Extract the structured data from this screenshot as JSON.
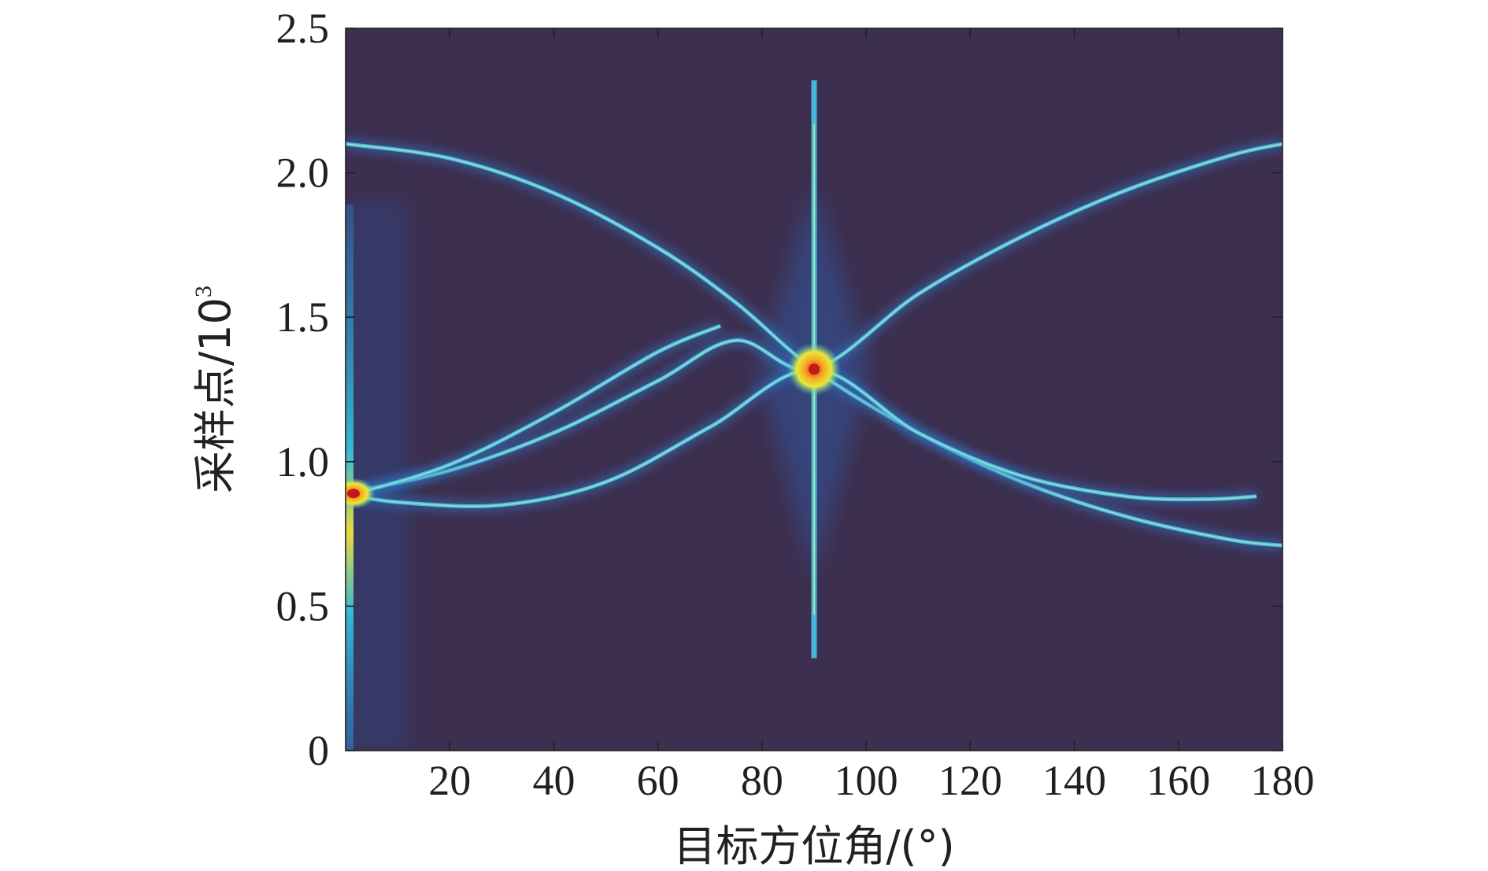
{
  "chart_data": {
    "type": "heatmap",
    "title": "",
    "xlabel": "目标方位角/(°)",
    "ylabel": "采样点/10",
    "ylabel_superscript": "3",
    "xlim": [
      0,
      180
    ],
    "ylim": [
      0,
      2.5
    ],
    "x_ticks": [
      20,
      40,
      60,
      80,
      100,
      120,
      140,
      160,
      180
    ],
    "y_ticks": [
      0,
      0.5,
      1.0,
      1.5,
      2.0,
      2.5
    ],
    "y_tick_labels": [
      "0",
      "0.5",
      "1.0",
      "1.5",
      "2.0",
      "2.5"
    ],
    "background_color": "#3d2f4f",
    "colormap": "jet",
    "features": [
      {
        "name": "vertical-line",
        "x": 90,
        "y_range": [
          0.32,
          2.32
        ]
      },
      {
        "name": "peak",
        "x": 90,
        "y": 1.32
      },
      {
        "name": "left-edge-peak",
        "x": 1.5,
        "y": 0.89
      },
      {
        "name": "curve-descending",
        "points": [
          [
            0,
            2.1
          ],
          [
            20,
            2.05
          ],
          [
            40,
            1.93
          ],
          [
            60,
            1.74
          ],
          [
            75,
            1.55
          ],
          [
            90,
            1.32
          ],
          [
            110,
            1.1
          ],
          [
            130,
            0.93
          ],
          [
            150,
            0.81
          ],
          [
            170,
            0.73
          ],
          [
            180,
            0.71
          ]
        ]
      },
      {
        "name": "curve-ascending",
        "points": [
          [
            0,
            0.89
          ],
          [
            20,
            0.97
          ],
          [
            40,
            1.1
          ],
          [
            60,
            1.28
          ],
          [
            75,
            1.42
          ],
          [
            90,
            1.32
          ],
          [
            110,
            1.58
          ],
          [
            130,
            1.78
          ],
          [
            150,
            1.94
          ],
          [
            170,
            2.06
          ],
          [
            180,
            2.1
          ]
        ]
      },
      {
        "name": "curve-lower",
        "points": [
          [
            0,
            0.89
          ],
          [
            10,
            0.86
          ],
          [
            30,
            0.85
          ],
          [
            50,
            0.93
          ],
          [
            70,
            1.12
          ],
          [
            90,
            1.32
          ],
          [
            110,
            1.1
          ],
          [
            130,
            0.95
          ],
          [
            150,
            0.88
          ],
          [
            165,
            0.87
          ],
          [
            175,
            0.88
          ]
        ]
      },
      {
        "name": "curve-upper-left",
        "points": [
          [
            2,
            0.89
          ],
          [
            20,
            0.99
          ],
          [
            40,
            1.17
          ],
          [
            60,
            1.38
          ],
          [
            72,
            1.47
          ]
        ]
      }
    ]
  }
}
